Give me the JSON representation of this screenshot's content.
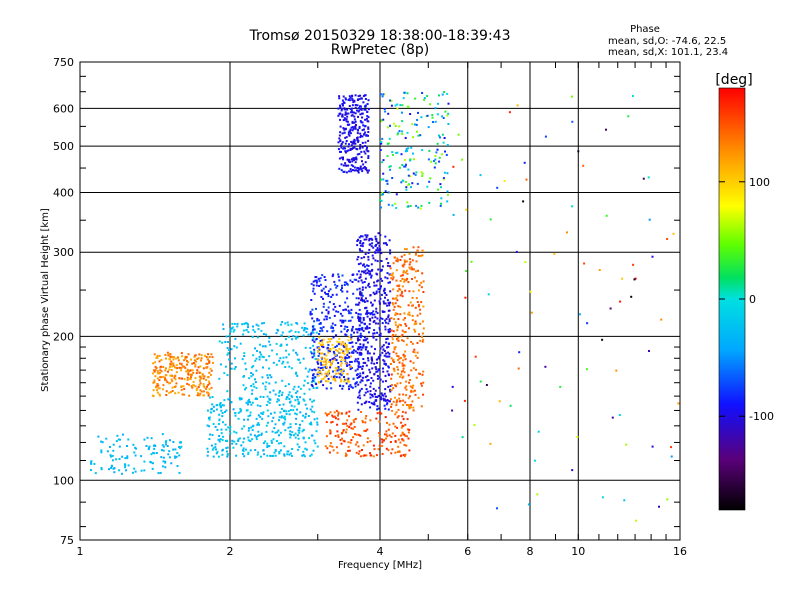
{
  "chart_data": {
    "type": "scatter",
    "title": "Tromsø 20150329 18:38:00-18:39:43",
    "subtitle": "RwPretec (8p)",
    "xlabel": "Frequency [MHz]",
    "ylabel": "Stationary phase Virtual Height [km]",
    "x_scale": "log",
    "y_scale": "log",
    "xlim": [
      1,
      16
    ],
    "ylim": [
      75,
      750
    ],
    "x_ticks": [
      1,
      2,
      4,
      6,
      8,
      10,
      16
    ],
    "y_ticks": [
      75,
      100,
      200,
      300,
      400,
      500,
      600,
      750
    ],
    "grid": true,
    "phase_box": {
      "title": "Phase",
      "o_line": "mean, sd,O: -74.6, 22.5",
      "x_line": "mean, sd,X: 101.1, 23.4"
    },
    "colorbar": {
      "label": "[deg]",
      "range": [
        -180,
        180
      ],
      "ticks": [
        100,
        0,
        -100
      ]
    },
    "clusters": [
      {
        "name": "low-frequency trace",
        "freq": [
          1.05,
          1.6
        ],
        "height": [
          103,
          125
        ],
        "phase": [
          -40,
          -20
        ],
        "n": 120
      },
      {
        "name": "orange patch",
        "freq": [
          1.4,
          1.85
        ],
        "height": [
          150,
          185
        ],
        "phase": [
          110,
          150
        ],
        "n": 260
      },
      {
        "name": "lower F trace",
        "freq": [
          1.8,
          3.0
        ],
        "height": [
          112,
          150
        ],
        "phase": [
          -40,
          -10
        ],
        "n": 360
      },
      {
        "name": "upper F trace",
        "freq": [
          1.9,
          3.0
        ],
        "height": [
          150,
          215
        ],
        "phase": [
          -40,
          -10
        ],
        "n": 240
      },
      {
        "name": "mid cusp",
        "freq": [
          2.9,
          3.7
        ],
        "height": [
          155,
          270
        ],
        "phase": [
          -100,
          -70
        ],
        "n": 360
      },
      {
        "name": "yellow band",
        "freq": [
          3.0,
          3.5
        ],
        "height": [
          160,
          200
        ],
        "phase": [
          95,
          120
        ],
        "n": 120
      },
      {
        "name": "blue column",
        "freq": [
          3.6,
          4.2
        ],
        "height": [
          140,
          330
        ],
        "phase": [
          -110,
          -85
        ],
        "n": 480
      },
      {
        "name": "red bottom",
        "freq": [
          3.1,
          4.6
        ],
        "height": [
          112,
          140
        ],
        "phase": [
          130,
          170
        ],
        "n": 200
      },
      {
        "name": "orange column",
        "freq": [
          4.2,
          4.9
        ],
        "height": [
          140,
          310
        ],
        "phase": [
          120,
          160
        ],
        "n": 300
      },
      {
        "name": "upper blue cluster",
        "freq": [
          3.3,
          3.8
        ],
        "height": [
          440,
          640
        ],
        "phase": [
          -110,
          -85
        ],
        "n": 300
      },
      {
        "name": "high band",
        "freq": [
          4.0,
          5.5
        ],
        "height": [
          370,
          650
        ],
        "phase": [
          -100,
          70
        ],
        "n": 200
      },
      {
        "name": "sparse high frequency",
        "freq": [
          5.5,
          15.9
        ],
        "height": [
          80,
          650
        ],
        "phase": [
          -180,
          180
        ],
        "n": 90
      }
    ]
  }
}
